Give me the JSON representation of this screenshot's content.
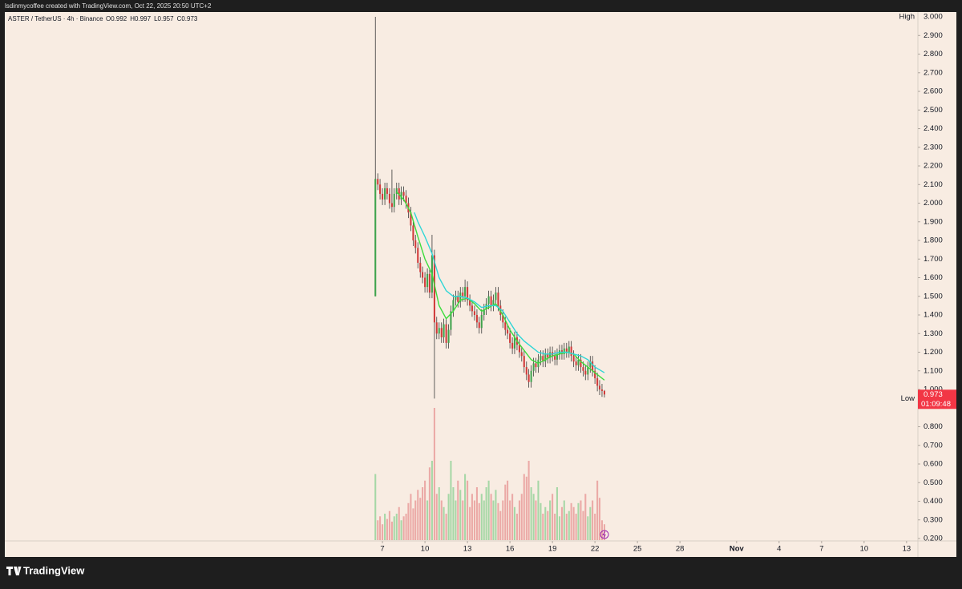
{
  "header": "lsdinmycoffee created with TradingView.com, Oct 22, 2025 20:50 UTC+2",
  "brand": "TradingView",
  "chart_data": {
    "type": "candlestick",
    "title": "ASTER / TetherUS · 4h · Binance",
    "ohlc_keys": [
      "O",
      "H",
      "L",
      "C"
    ],
    "x": [
      6.5,
      6.67,
      6.83,
      7,
      7.17,
      7.33,
      7.5,
      7.67,
      7.83,
      8,
      8.17,
      8.33,
      8.5,
      8.67,
      8.83,
      9,
      9.17,
      9.33,
      9.5,
      9.67,
      9.83,
      10,
      10.17,
      10.33,
      10.5,
      10.67,
      10.83,
      11,
      11.17,
      11.33,
      11.5,
      11.67,
      11.83,
      12,
      12.17,
      12.33,
      12.5,
      12.67,
      12.83,
      13,
      13.17,
      13.33,
      13.5,
      13.67,
      13.83,
      14,
      14.17,
      14.33,
      14.5,
      14.67,
      14.83,
      15,
      15.17,
      15.33,
      15.5,
      15.67,
      15.83,
      16,
      16.17,
      16.33,
      16.5,
      16.67,
      16.83,
      17,
      17.17,
      17.33,
      17.5,
      17.67,
      17.83,
      18,
      18.17,
      18.33,
      18.5,
      18.67,
      18.83,
      19,
      19.17,
      19.33,
      19.5,
      19.67,
      19.83,
      20,
      20.17,
      20.33,
      20.5,
      20.67,
      20.83,
      21,
      21.17,
      21.33,
      21.5,
      21.67,
      21.83,
      22,
      22.17,
      22.33,
      22.5,
      22.67
    ],
    "open": [
      1.5,
      2.13,
      2.1,
      2.05,
      2.02,
      2.08,
      2.05,
      2.0,
      1.98,
      2.05,
      2.08,
      2.02,
      2.06,
      2.04,
      2.0,
      1.95,
      1.88,
      1.8,
      1.76,
      1.68,
      1.63,
      1.6,
      1.55,
      1.62,
      1.52,
      1.72,
      1.36,
      1.3,
      1.33,
      1.28,
      1.35,
      1.25,
      1.32,
      1.42,
      1.48,
      1.5,
      1.47,
      1.52,
      1.5,
      1.55,
      1.48,
      1.45,
      1.42,
      1.4,
      1.36,
      1.33,
      1.4,
      1.43,
      1.46,
      1.5,
      1.45,
      1.48,
      1.52,
      1.45,
      1.4,
      1.36,
      1.32,
      1.3,
      1.25,
      1.22,
      1.28,
      1.24,
      1.2,
      1.18,
      1.12,
      1.08,
      1.04,
      1.1,
      1.14,
      1.12,
      1.16,
      1.18,
      1.15,
      1.19,
      1.17,
      1.2,
      1.18,
      1.16,
      1.19,
      1.21,
      1.19,
      1.22,
      1.2,
      1.23,
      1.18,
      1.15,
      1.13,
      1.16,
      1.12,
      1.1,
      1.08,
      1.12,
      1.15,
      1.1,
      1.06,
      1.02,
      1.0,
      0.992
    ],
    "high": [
      3.0,
      2.16,
      2.13,
      2.08,
      2.11,
      2.11,
      2.08,
      2.18,
      2.08,
      2.11,
      2.11,
      2.09,
      2.09,
      2.07,
      2.03,
      1.98,
      1.91,
      1.83,
      1.79,
      1.71,
      1.66,
      1.63,
      1.65,
      1.65,
      1.83,
      1.75,
      1.39,
      1.36,
      1.36,
      1.38,
      1.38,
      1.35,
      1.45,
      1.51,
      1.53,
      1.53,
      1.55,
      1.55,
      1.59,
      1.58,
      1.51,
      1.48,
      1.45,
      1.43,
      1.39,
      1.43,
      1.46,
      1.49,
      1.53,
      1.53,
      1.51,
      1.55,
      1.55,
      1.48,
      1.43,
      1.39,
      1.35,
      1.33,
      1.28,
      1.31,
      1.31,
      1.27,
      1.23,
      1.21,
      1.15,
      1.11,
      1.13,
      1.17,
      1.17,
      1.19,
      1.21,
      1.21,
      1.22,
      1.22,
      1.23,
      1.23,
      1.21,
      1.22,
      1.24,
      1.24,
      1.25,
      1.25,
      1.26,
      1.26,
      1.21,
      1.18,
      1.19,
      1.19,
      1.15,
      1.13,
      1.15,
      1.18,
      1.18,
      1.13,
      1.09,
      1.05,
      1.03,
      0.997
    ],
    "low": [
      1.5,
      2.07,
      2.02,
      1.99,
      1.99,
      2.02,
      1.97,
      1.95,
      1.95,
      2.02,
      1.99,
      1.99,
      2.01,
      1.97,
      1.92,
      1.85,
      1.77,
      1.73,
      1.65,
      1.6,
      1.57,
      1.52,
      1.52,
      1.49,
      1.49,
      0.951,
      1.27,
      1.27,
      1.25,
      1.25,
      1.22,
      1.22,
      1.29,
      1.39,
      1.45,
      1.44,
      1.44,
      1.47,
      1.47,
      1.45,
      1.42,
      1.39,
      1.37,
      1.33,
      1.3,
      1.3,
      1.37,
      1.4,
      1.43,
      1.42,
      1.42,
      1.45,
      1.42,
      1.37,
      1.33,
      1.29,
      1.27,
      1.22,
      1.19,
      1.19,
      1.21,
      1.17,
      1.15,
      1.09,
      1.05,
      1.01,
      1.01,
      1.07,
      1.09,
      1.09,
      1.13,
      1.12,
      1.12,
      1.14,
      1.14,
      1.15,
      1.13,
      1.13,
      1.16,
      1.16,
      1.16,
      1.17,
      1.17,
      1.15,
      1.12,
      1.1,
      1.1,
      1.09,
      1.07,
      1.05,
      1.05,
      1.09,
      1.07,
      1.03,
      0.99,
      0.97,
      0.96,
      0.957
    ],
    "close": [
      2.13,
      2.1,
      2.05,
      2.02,
      2.08,
      2.05,
      2.0,
      1.98,
      2.05,
      2.08,
      2.02,
      2.06,
      2.04,
      2.0,
      1.95,
      1.88,
      1.8,
      1.76,
      1.68,
      1.63,
      1.6,
      1.55,
      1.62,
      1.52,
      1.72,
      1.36,
      1.3,
      1.33,
      1.28,
      1.35,
      1.25,
      1.32,
      1.42,
      1.48,
      1.5,
      1.47,
      1.52,
      1.5,
      1.55,
      1.48,
      1.45,
      1.42,
      1.4,
      1.36,
      1.33,
      1.4,
      1.43,
      1.46,
      1.5,
      1.45,
      1.48,
      1.52,
      1.45,
      1.4,
      1.36,
      1.32,
      1.3,
      1.25,
      1.22,
      1.28,
      1.24,
      1.2,
      1.18,
      1.12,
      1.08,
      1.04,
      1.1,
      1.14,
      1.12,
      1.16,
      1.18,
      1.15,
      1.19,
      1.17,
      1.2,
      1.18,
      1.16,
      1.19,
      1.21,
      1.19,
      1.22,
      1.2,
      1.23,
      1.18,
      1.15,
      1.13,
      1.16,
      1.12,
      1.1,
      1.08,
      1.12,
      1.15,
      1.1,
      1.06,
      1.02,
      1.0,
      0.992,
      0.973
    ],
    "volume": [
      50,
      15,
      18,
      12,
      20,
      16,
      22,
      14,
      18,
      20,
      25,
      15,
      18,
      20,
      28,
      35,
      24,
      30,
      38,
      32,
      40,
      45,
      30,
      55,
      60,
      100,
      35,
      40,
      30,
      25,
      20,
      35,
      60,
      40,
      30,
      45,
      38,
      30,
      50,
      45,
      25,
      35,
      30,
      40,
      28,
      35,
      30,
      40,
      45,
      35,
      30,
      38,
      28,
      22,
      30,
      42,
      45,
      30,
      35,
      25,
      20,
      30,
      35,
      50,
      48,
      60,
      40,
      35,
      30,
      45,
      28,
      20,
      25,
      22,
      30,
      35,
      20,
      40,
      18,
      25,
      30,
      20,
      22,
      28,
      25,
      20,
      28,
      30,
      22,
      35,
      18,
      25,
      30,
      20,
      45,
      32,
      15,
      12
    ],
    "up_color": "#3fa34d",
    "down_color": "#d13a3a",
    "up_volume_color": "#a6d7a6",
    "down_volume_color": "#eba9a6",
    "series": [
      {
        "color": "#3ddc3d",
        "x": [
          8,
          8.5,
          9,
          9.5,
          10,
          10.5,
          11,
          11.5,
          12,
          12.5,
          13,
          13.5,
          14,
          14.5,
          15,
          15.5,
          16,
          16.5,
          17,
          17.5,
          18,
          18.5,
          19,
          19.5,
          20,
          20.5,
          21,
          21.5,
          22,
          22.67
        ],
        "values": [
          2.06,
          2.02,
          1.95,
          1.82,
          1.7,
          1.62,
          1.45,
          1.38,
          1.42,
          1.48,
          1.49,
          1.46,
          1.42,
          1.44,
          1.46,
          1.4,
          1.32,
          1.26,
          1.21,
          1.16,
          1.14,
          1.16,
          1.18,
          1.19,
          1.2,
          1.19,
          1.15,
          1.12,
          1.09,
          1.05
        ]
      },
      {
        "color": "#2fd6d6",
        "x": [
          9.25,
          9.5,
          10,
          10.5,
          11,
          11.5,
          12,
          12.5,
          13,
          13.5,
          14,
          14.5,
          15,
          15.5,
          16,
          16.5,
          17,
          17.5,
          18,
          18.5,
          19,
          19.5,
          20,
          20.5,
          21,
          21.5,
          22,
          22.67
        ],
        "values": [
          1.95,
          1.9,
          1.82,
          1.73,
          1.6,
          1.53,
          1.5,
          1.5,
          1.49,
          1.47,
          1.44,
          1.45,
          1.45,
          1.42,
          1.36,
          1.3,
          1.26,
          1.23,
          1.2,
          1.19,
          1.19,
          1.2,
          1.2,
          1.19,
          1.18,
          1.16,
          1.12,
          1.09
        ]
      }
    ],
    "xlim": [
      -19.66,
      44.8
    ],
    "xticks": [
      7,
      10,
      13,
      16,
      19,
      22,
      25,
      28,
      {
        "value": 32,
        "label": "Nov"
      },
      {
        "value": 35,
        "label": "4"
      },
      {
        "value": 38,
        "label": "7"
      },
      {
        "value": 41,
        "label": "10"
      },
      {
        "value": 44,
        "label": "13"
      }
    ],
    "ylim": [
      0.101,
      3.026
    ],
    "yticks": [
      {
        "value": 0.2,
        "label": "0.200"
      },
      {
        "value": 0.3,
        "label": "0.300"
      },
      {
        "value": 0.4,
        "label": "0.400"
      },
      {
        "value": 0.5,
        "label": "0.500"
      },
      {
        "value": 0.6,
        "label": "0.600"
      },
      {
        "value": 0.7,
        "label": "0.700"
      },
      {
        "value": 0.8,
        "label": "0.800"
      },
      {
        "value": 1.0,
        "label": "1.000"
      },
      {
        "value": 1.1,
        "label": "1.100"
      },
      {
        "value": 1.2,
        "label": "1.200"
      },
      {
        "value": 1.3,
        "label": "1.300"
      },
      {
        "value": 1.4,
        "label": "1.400"
      },
      {
        "value": 1.5,
        "label": "1.500"
      },
      {
        "value": 1.6,
        "label": "1.600"
      },
      {
        "value": 1.7,
        "label": "1.700"
      },
      {
        "value": 1.8,
        "label": "1.800"
      },
      {
        "value": 1.9,
        "label": "1.900"
      },
      {
        "value": 2.0,
        "label": "2.000"
      },
      {
        "value": 2.1,
        "label": "2.100"
      },
      {
        "value": 2.2,
        "label": "2.200"
      },
      {
        "value": 2.3,
        "label": "2.300"
      },
      {
        "value": 2.4,
        "label": "2.400"
      },
      {
        "value": 2.5,
        "label": "2.500"
      },
      {
        "value": 2.6,
        "label": "2.600"
      },
      {
        "value": 2.7,
        "label": "2.700"
      },
      {
        "value": 2.8,
        "label": "2.800"
      },
      {
        "value": 2.9,
        "label": "2.900"
      }
    ],
    "high_label": "High",
    "high_value": {
      "value": 3,
      "label": "3.000"
    },
    "low_label": "Low",
    "countdown": "01:09:48",
    "price_tag_color": "#f23645"
  }
}
